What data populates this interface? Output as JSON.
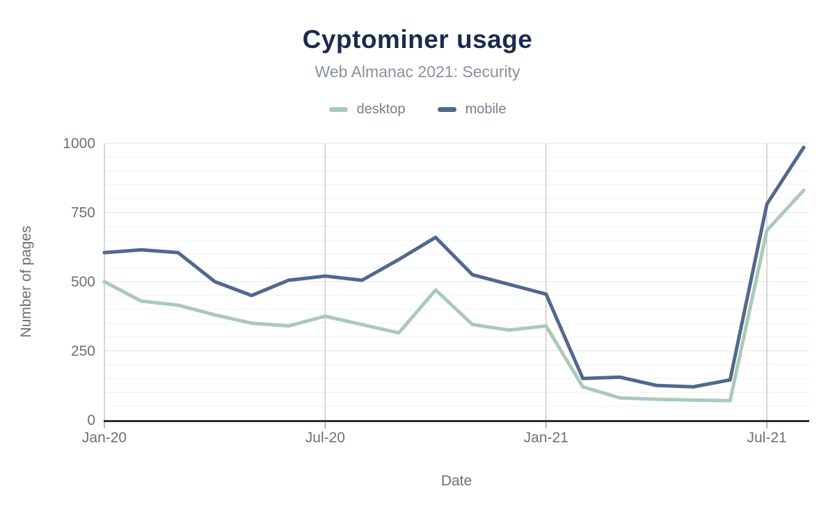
{
  "page": {
    "background": "#ffffff"
  },
  "header": {
    "title": "Cyptominer usage",
    "subtitle": "Web Almanac 2021: Security"
  },
  "colors": {
    "title": "#1b2b4e",
    "subtitle": "#8a9199",
    "axis_text": "#6b7077",
    "legend_text": "#79818c",
    "x_axis_line": "#2e2e2e",
    "y_axis_line": "#d2d2d2",
    "v_gridline": "#cccccc",
    "h_gridline_minor": "#f0f0f0",
    "h_gridline_major": "#e4e4e4"
  },
  "chart_data": {
    "type": "line",
    "title": "Cyptominer usage",
    "subtitle": "Web Almanac 2021: Security",
    "xlabel": "Date",
    "ylabel": "Number of pages",
    "legend_position": "top",
    "grid": "on",
    "ylim": [
      0,
      1000
    ],
    "y_ticks": [
      0,
      250,
      500,
      750,
      1000
    ],
    "y_minor_step": 50,
    "x_tick_indices": [
      0,
      6,
      12,
      18
    ],
    "x_tick_labels": [
      "Jan-20",
      "Jul-20",
      "Jan-21",
      "Jul-21"
    ],
    "x": [
      "Jan-20",
      "Feb-20",
      "Mar-20",
      "Apr-20",
      "May-20",
      "Jun-20",
      "Jul-20",
      "Aug-20",
      "Sep-20",
      "Oct-20",
      "Nov-20",
      "Dec-20",
      "Jan-21",
      "Feb-21",
      "Mar-21",
      "Apr-21",
      "May-21",
      "Jun-21",
      "Jul-21",
      "Aug-21"
    ],
    "series": [
      {
        "name": "desktop",
        "color": "#a9cab7",
        "values": [
          500,
          430,
          415,
          380,
          350,
          340,
          375,
          345,
          315,
          470,
          345,
          325,
          340,
          120,
          80,
          75,
          72,
          70,
          685,
          830
        ]
      },
      {
        "name": "mobile",
        "color": "#52688c",
        "values": [
          605,
          615,
          605,
          500,
          450,
          505,
          520,
          505,
          580,
          660,
          525,
          490,
          455,
          150,
          155,
          125,
          120,
          145,
          780,
          985
        ]
      }
    ]
  }
}
